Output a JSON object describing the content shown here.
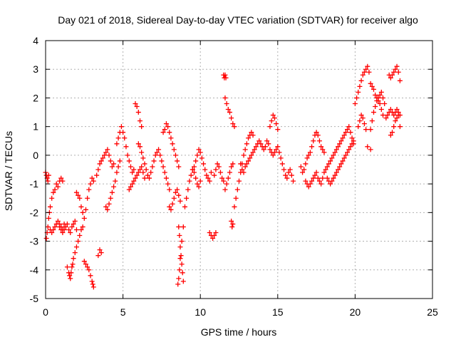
{
  "chart_data": {
    "type": "scatter",
    "title": "Day 021 of 2018, Sidereal Day-to-day VTEC variation (SDTVAR) for receiver algo",
    "xlabel": "GPS time / hours",
    "ylabel": "SDTVAR / TECUs",
    "xlim": [
      0,
      25
    ],
    "ylim": [
      -5,
      4
    ],
    "xticks": [
      0,
      5,
      10,
      15,
      20,
      25
    ],
    "yticks": [
      -5,
      -4,
      -3,
      -2,
      -1,
      0,
      1,
      2,
      3,
      4
    ],
    "grid": true,
    "marker": "plus",
    "marker_color": "#ff0000",
    "series": [
      {
        "name": "SDTVAR",
        "x": [
          0.0,
          0.05,
          0.1,
          0.15,
          0.2,
          0.05,
          0.1,
          0.15,
          0.2,
          0.25,
          0.3,
          0.4,
          0.5,
          0.6,
          0.7,
          0.8,
          0.9,
          1.0,
          1.1,
          0.3,
          0.4,
          0.5,
          0.6,
          0.7,
          0.8,
          0.9,
          1.0,
          1.1,
          1.2,
          0.9,
          1.0,
          1.1,
          1.2,
          1.3,
          1.4,
          1.5,
          1.6,
          1.7,
          1.8,
          1.9,
          2.0,
          1.4,
          1.5,
          1.55,
          1.6,
          1.65,
          1.7,
          1.75,
          1.8,
          1.9,
          2.0,
          2.1,
          2.2,
          2.3,
          2.4,
          2.0,
          2.1,
          2.2,
          2.3,
          2.4,
          2.5,
          2.6,
          2.7,
          2.8,
          2.9,
          3.0,
          3.1,
          2.5,
          2.6,
          2.7,
          2.8,
          2.9,
          3.0,
          3.05,
          3.1,
          3.4,
          3.5,
          3.6,
          3.3,
          3.4,
          3.5,
          3.6,
          3.7,
          3.8,
          3.9,
          4.0,
          4.1,
          4.2,
          4.3,
          4.4,
          3.9,
          4.0,
          4.1,
          4.2,
          4.3,
          4.4,
          4.5,
          4.6,
          4.7,
          4.8,
          4.6,
          4.7,
          4.8,
          4.9,
          5.0,
          5.1,
          5.2,
          5.3,
          5.4,
          5.5,
          5.6,
          5.7,
          5.4,
          5.5,
          5.6,
          5.7,
          5.8,
          5.9,
          6.0,
          6.1,
          6.2,
          6.3,
          6.4,
          5.8,
          5.9,
          6.0,
          6.1,
          6.2,
          6.0,
          6.1,
          6.2,
          6.3,
          6.4,
          6.5,
          6.6,
          6.7,
          6.8,
          6.9,
          7.0,
          7.1,
          7.2,
          7.3,
          7.4,
          7.5,
          7.6,
          7.7,
          7.8,
          7.9,
          8.0,
          7.6,
          7.7,
          7.8,
          7.9,
          8.0,
          8.1,
          8.2,
          8.3,
          8.4,
          8.5,
          8.6,
          8.0,
          8.1,
          8.2,
          8.3,
          8.4,
          8.5,
          8.6,
          8.7,
          8.6,
          8.65,
          8.7,
          8.75,
          8.8,
          8.85,
          8.9,
          8.55,
          8.6,
          8.65,
          8.7,
          8.8,
          8.9,
          9.0,
          9.1,
          9.2,
          9.3,
          9.4,
          9.5,
          9.6,
          9.7,
          9.8,
          9.9,
          10.0,
          9.5,
          9.6,
          9.7,
          9.8,
          9.9,
          10.0,
          10.1,
          10.2,
          10.3,
          10.4,
          10.5,
          10.6,
          10.7,
          10.6,
          10.7,
          10.8,
          10.9,
          11.0,
          10.9,
          11.0,
          11.1,
          11.2,
          11.3,
          11.4,
          11.5,
          11.6,
          11.7,
          11.8,
          11.9,
          12.0,
          12.1,
          11.5,
          11.55,
          11.6,
          11.65,
          11.6,
          11.7,
          11.8,
          11.9,
          12.0,
          12.1,
          12.2,
          12.0,
          12.05,
          12.1,
          12.2,
          12.3,
          12.4,
          12.5,
          12.6,
          12.7,
          12.8,
          12.9,
          13.0,
          13.1,
          13.2,
          13.3,
          13.4,
          12.6,
          12.7,
          12.8,
          12.9,
          13.0,
          13.1,
          13.2,
          13.3,
          13.4,
          13.5,
          13.6,
          13.7,
          13.8,
          13.9,
          14.0,
          14.1,
          14.2,
          14.3,
          14.4,
          14.5,
          14.6,
          14.7,
          14.8,
          14.9,
          15.0,
          15.1,
          15.2,
          15.3,
          15.4,
          15.5,
          15.6,
          15.7,
          15.8,
          15.9,
          16.0,
          14.5,
          14.6,
          14.7,
          14.8,
          14.9,
          15.0,
          16.5,
          16.6,
          16.7,
          16.8,
          16.9,
          17.0,
          17.1,
          17.2,
          17.3,
          17.4,
          17.5,
          17.6,
          17.7,
          17.8,
          17.9,
          18.0,
          16.8,
          16.9,
          17.0,
          17.1,
          17.2,
          17.3,
          17.4,
          17.5,
          17.6,
          17.7,
          17.8,
          17.9,
          18.0,
          18.1,
          18.2,
          18.3,
          18.4,
          18.5,
          18.6,
          18.7,
          18.8,
          18.9,
          19.0,
          19.1,
          19.2,
          19.3,
          19.4,
          19.5,
          19.6,
          19.7,
          19.8,
          19.9,
          18.2,
          18.3,
          18.4,
          18.5,
          18.6,
          18.7,
          18.8,
          18.9,
          19.0,
          19.1,
          19.2,
          19.3,
          19.4,
          19.5,
          19.6,
          19.7,
          19.8,
          19.9,
          20.0,
          20.1,
          20.2,
          20.3,
          20.4,
          20.5,
          20.6,
          20.7,
          20.8,
          20.9,
          21.0,
          20.2,
          20.3,
          20.4,
          20.5,
          20.6,
          20.7,
          20.8,
          21.0,
          21.1,
          21.2,
          21.3,
          21.4,
          21.5,
          21.6,
          21.7,
          21.8,
          21.9,
          21.0,
          21.1,
          21.2,
          21.3,
          21.4,
          21.5,
          21.6,
          21.7,
          21.8,
          22.0,
          22.1,
          22.2,
          22.3,
          22.4,
          22.5,
          22.6,
          22.7,
          22.8,
          22.9,
          22.2,
          22.3,
          22.4,
          22.5,
          22.6,
          22.7,
          22.8,
          22.9,
          22.3,
          22.4,
          22.5,
          22.6,
          22.7,
          22.8,
          22.9
        ],
        "y": [
          -0.6,
          -0.7,
          -0.8,
          -0.9,
          -0.7,
          -2.9,
          -2.7,
          -2.5,
          -2.2,
          -2.0,
          -1.8,
          -1.5,
          -1.3,
          -1.2,
          -1.0,
          -1.1,
          -0.9,
          -0.8,
          -0.9,
          -2.6,
          -2.7,
          -2.6,
          -2.5,
          -2.4,
          -2.3,
          -2.4,
          -2.5,
          -2.6,
          -2.4,
          -2.5,
          -2.6,
          -2.7,
          -2.6,
          -2.5,
          -2.4,
          -2.6,
          -2.7,
          -2.5,
          -2.4,
          -2.3,
          -2.6,
          -3.9,
          -4.1,
          -4.2,
          -4.3,
          -4.1,
          -3.9,
          -3.8,
          -3.6,
          -3.4,
          -3.2,
          -3.0,
          -2.8,
          -2.6,
          -2.5,
          -1.3,
          -1.4,
          -1.5,
          -1.8,
          -2.0,
          -2.2,
          -1.9,
          -1.5,
          -1.2,
          -1.0,
          -0.8,
          -0.9,
          -3.7,
          -3.8,
          -3.9,
          -4.0,
          -4.2,
          -4.4,
          -4.5,
          -4.6,
          -3.5,
          -3.3,
          -3.4,
          -0.7,
          -0.5,
          -0.3,
          -0.2,
          -0.1,
          0.0,
          0.1,
          0.2,
          0.0,
          -0.2,
          -0.4,
          -0.3,
          -1.8,
          -1.9,
          -1.7,
          -1.5,
          -1.3,
          -1.1,
          -0.9,
          -0.6,
          -0.4,
          -0.2,
          0.4,
          0.6,
          0.8,
          1.0,
          0.8,
          0.6,
          0.3,
          0.0,
          -0.2,
          -0.4,
          -0.6,
          -0.5,
          -1.2,
          -1.1,
          -1.0,
          -0.9,
          -0.8,
          -0.7,
          -0.6,
          -0.5,
          -0.4,
          -0.6,
          -0.8,
          1.8,
          1.7,
          1.5,
          1.2,
          1.0,
          0.4,
          0.3,
          0.1,
          -0.1,
          -0.3,
          -0.5,
          -0.7,
          -0.8,
          -0.6,
          -0.4,
          -0.2,
          0.0,
          0.1,
          0.2,
          0.0,
          -0.2,
          -0.4,
          -0.6,
          -0.8,
          -1.0,
          -1.2,
          0.8,
          0.9,
          1.1,
          1.0,
          0.8,
          0.6,
          0.4,
          0.2,
          0.0,
          -0.2,
          -0.4,
          -1.8,
          -1.9,
          -1.7,
          -1.5,
          -1.3,
          -1.2,
          -1.4,
          -1.6,
          -2.5,
          -2.8,
          -3.2,
          -3.5,
          -3.8,
          -4.1,
          -4.4,
          -4.5,
          -4.3,
          -4.0,
          -3.6,
          -3.0,
          -2.5,
          -1.8,
          -1.5,
          -1.2,
          -0.9,
          -0.7,
          -0.5,
          -0.6,
          -0.8,
          -1.0,
          -1.1,
          -0.9,
          -0.5,
          -0.4,
          -0.2,
          0.0,
          0.2,
          0.1,
          -0.1,
          -0.3,
          -0.5,
          -0.7,
          -0.8,
          -0.9,
          -0.6,
          -2.7,
          -2.8,
          -2.9,
          -2.8,
          -2.7,
          -0.7,
          -0.5,
          -0.3,
          -0.4,
          -0.6,
          -0.8,
          -0.9,
          -1.2,
          -1.0,
          -0.8,
          -0.6,
          -0.4,
          -0.3,
          2.8,
          2.7,
          2.8,
          2.7,
          2.0,
          1.8,
          1.6,
          1.5,
          1.3,
          1.1,
          1.0,
          -2.3,
          -2.5,
          -2.4,
          -1.8,
          -1.5,
          -1.2,
          -0.9,
          -0.6,
          -0.3,
          0.0,
          0.2,
          0.4,
          0.6,
          0.7,
          0.8,
          0.7,
          -0.3,
          -0.5,
          -0.6,
          -0.4,
          -0.3,
          -0.2,
          -0.1,
          0.0,
          0.1,
          0.2,
          0.3,
          0.4,
          0.5,
          0.4,
          0.3,
          0.2,
          0.3,
          0.5,
          0.4,
          0.2,
          0.1,
          0.0,
          0.1,
          0.2,
          0.3,
          0.1,
          -0.1,
          -0.3,
          -0.5,
          -0.7,
          -0.8,
          -0.6,
          -0.5,
          -0.7,
          -0.9,
          1.0,
          1.2,
          1.4,
          1.3,
          1.1,
          0.9,
          -0.4,
          -0.6,
          -0.5,
          -0.3,
          -0.1,
          0.0,
          0.1,
          0.3,
          0.5,
          0.7,
          0.8,
          0.7,
          0.5,
          0.3,
          0.2,
          0.1,
          -0.9,
          -1.0,
          -1.1,
          -1.0,
          -0.9,
          -0.8,
          -0.7,
          -0.6,
          -0.8,
          -0.9,
          -1.0,
          -0.8,
          -0.6,
          -0.5,
          -0.4,
          -0.3,
          -0.2,
          -0.1,
          0.0,
          0.1,
          0.2,
          0.3,
          0.4,
          0.5,
          0.6,
          0.7,
          0.8,
          0.9,
          1.0,
          0.8,
          0.6,
          0.4,
          -0.8,
          -0.9,
          -1.0,
          -0.9,
          -0.8,
          -0.7,
          -0.6,
          -0.5,
          -0.4,
          -0.3,
          -0.2,
          -0.1,
          0.0,
          0.1,
          0.2,
          0.3,
          0.4,
          0.5,
          1.8,
          2.0,
          2.2,
          2.4,
          2.6,
          2.8,
          2.9,
          3.0,
          3.1,
          2.9,
          0.9,
          1.0,
          1.2,
          1.4,
          1.3,
          1.1,
          0.9,
          0.3,
          0.2,
          1.2,
          1.5,
          1.7,
          1.9,
          2.0,
          2.1,
          2.2,
          2.0,
          1.8,
          2.5,
          2.4,
          2.3,
          2.1,
          2.0,
          1.9,
          1.8,
          1.6,
          1.4,
          1.3,
          1.4,
          1.5,
          1.6,
          1.5,
          1.4,
          1.5,
          1.6,
          1.5,
          1.4,
          2.8,
          2.7,
          2.8,
          2.9,
          3.0,
          3.1,
          2.9,
          2.6,
          0.7,
          0.8,
          1.0,
          1.2,
          1.3,
          1.4,
          1.0
        ]
      }
    ]
  }
}
